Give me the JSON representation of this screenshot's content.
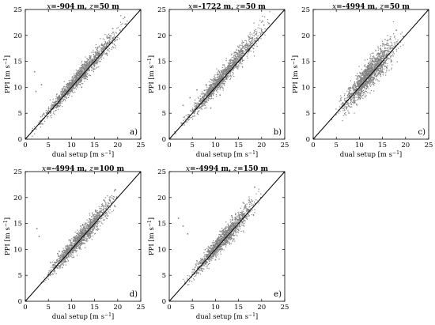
{
  "chart_data": [
    {
      "type": "scatter",
      "panel_id": "a",
      "title": "x=-904 m, z=50 m",
      "panel_label": "a)",
      "xlabel": "dual setup [m s⁻¹]",
      "ylabel": "PPI [m s⁻¹]",
      "xlim": [
        0,
        25
      ],
      "ylim": [
        0,
        25
      ],
      "xticks": [
        0,
        5,
        10,
        15,
        20,
        25
      ],
      "yticks": [
        0,
        5,
        10,
        15,
        20,
        25
      ],
      "reference_line": "1:1",
      "point_color": "#808080",
      "series": [
        {
          "x": [
            1.5,
            3.2,
            4.8,
            6.1,
            7.5,
            9.0,
            10.4,
            11.8,
            13.2,
            14.6,
            16.0,
            17.5,
            19.0,
            20.5,
            21.8,
            2.3,
            3.5,
            2.0,
            4.0,
            6.5,
            9.0,
            11.5,
            14.0,
            16.5,
            19.0,
            21.5,
            12.2,
            13.4,
            14.8,
            16.2,
            17.6
          ],
          "y": [
            1.7,
            3.5,
            5.2,
            6.3,
            7.8,
            9.3,
            10.6,
            12.3,
            13.6,
            15.0,
            16.4,
            17.8,
            19.5,
            21.0,
            22.2,
            9.2,
            10.5,
            13.0,
            4.8,
            7.2,
            10.1,
            12.8,
            15.5,
            18.1,
            20.6,
            23.5,
            10.0,
            12.0,
            13.5,
            15.0,
            16.5
          ]
        }
      ]
    },
    {
      "type": "scatter",
      "panel_id": "b",
      "title": "x=-1722 m, z=50 m",
      "panel_label": "b)",
      "xlabel": "dual setup [m s⁻¹]",
      "ylabel": "PPI [m s⁻¹]",
      "xlim": [
        0,
        25
      ],
      "ylim": [
        0,
        25
      ],
      "xticks": [
        0,
        5,
        10,
        15,
        20,
        25
      ],
      "yticks": [
        0,
        5,
        10,
        15,
        20,
        25
      ],
      "reference_line": "1:1",
      "point_color": "#808080",
      "series": [
        {
          "x": [
            1.2,
            2.8,
            4.3,
            5.7,
            7.1,
            8.6,
            10.0,
            11.4,
            12.8,
            14.2,
            15.6,
            17.1,
            18.6,
            20.1,
            21.6,
            3.0,
            4.5,
            6.0,
            8.0,
            10.5,
            13.0,
            15.5,
            18.0,
            20.5,
            9.0,
            11.0
          ],
          "y": [
            1.4,
            3.0,
            4.6,
            5.9,
            7.5,
            8.9,
            10.5,
            11.8,
            13.3,
            14.5,
            16.1,
            17.4,
            19.0,
            20.6,
            22.3,
            6.5,
            8.0,
            9.5,
            10.5,
            12.5,
            14.5,
            17.0,
            19.5,
            22.0,
            6.0,
            8.5
          ]
        }
      ]
    },
    {
      "type": "scatter",
      "panel_id": "c",
      "title": "x=-4994 m, z=50 m",
      "panel_label": "c)",
      "xlabel": "dual setup [m s⁻¹]",
      "ylabel": "PPI [m s⁻¹]",
      "xlim": [
        0,
        25
      ],
      "ylim": [
        0,
        25
      ],
      "xticks": [
        0,
        5,
        10,
        15,
        20,
        25
      ],
      "yticks": [
        0,
        5,
        10,
        15,
        20,
        25
      ],
      "reference_line": "1:1",
      "point_color": "#808080",
      "series": [
        {
          "x": [
            4.0,
            5.5,
            7.0,
            8.2,
            9.4,
            10.5,
            11.6,
            12.7,
            13.8,
            14.9,
            16.0,
            17.1,
            18.2,
            19.5,
            6.0,
            8.0,
            10.0,
            12.0,
            14.0,
            16.0,
            18.0,
            9.0,
            11.0,
            13.0,
            15.0,
            17.0
          ],
          "y": [
            3.8,
            5.6,
            7.3,
            8.7,
            9.8,
            10.6,
            11.9,
            13.0,
            14.2,
            15.0,
            16.3,
            17.0,
            18.4,
            19.8,
            7.5,
            9.8,
            12.0,
            14.2,
            16.5,
            18.5,
            21.0,
            7.0,
            9.0,
            11.0,
            13.0,
            15.0
          ]
        }
      ]
    },
    {
      "type": "scatter",
      "panel_id": "d",
      "title": "x=-4994 m, z=100 m",
      "panel_label": "d)",
      "xlabel": "dual setup [m s⁻¹]",
      "ylabel": "PPI [m s⁻¹]",
      "xlim": [
        0,
        25
      ],
      "ylim": [
        0,
        25
      ],
      "xticks": [
        0,
        5,
        10,
        15,
        20,
        25
      ],
      "yticks": [
        0,
        5,
        10,
        15,
        20,
        25
      ],
      "reference_line": "1:1",
      "point_color": "#808080",
      "series": [
        {
          "x": [
            3.5,
            5.0,
            6.5,
            7.8,
            9.0,
            10.2,
            11.4,
            12.6,
            13.8,
            15.0,
            16.2,
            17.4,
            18.6,
            19.8,
            2.5,
            3.0,
            5.5,
            7.0,
            9.5,
            12.0,
            14.5,
            17.0,
            19.5,
            8.0,
            10.5
          ],
          "y": [
            3.6,
            5.1,
            6.8,
            8.0,
            9.3,
            10.4,
            11.7,
            12.9,
            14.0,
            15.3,
            16.4,
            17.8,
            18.9,
            20.1,
            14.0,
            12.5,
            7.5,
            9.2,
            11.8,
            14.5,
            17.0,
            19.5,
            21.5,
            6.5,
            8.5
          ]
        }
      ]
    },
    {
      "type": "scatter",
      "panel_id": "e",
      "title": "x=-4994 m, z=150 m",
      "panel_label": "e)",
      "xlabel": "dual setup [m s⁻¹]",
      "ylabel": "PPI [m s⁻¹]",
      "xlim": [
        0,
        25
      ],
      "ylim": [
        0,
        25
      ],
      "xticks": [
        0,
        5,
        10,
        15,
        20,
        25
      ],
      "yticks": [
        0,
        5,
        10,
        15,
        20,
        25
      ],
      "reference_line": "1:1",
      "point_color": "#808080",
      "series": [
        {
          "x": [
            3.5,
            5.0,
            6.5,
            7.8,
            9.0,
            10.2,
            11.4,
            12.6,
            13.8,
            15.0,
            16.2,
            17.4,
            18.6,
            19.8,
            2.0,
            3.0,
            4.0,
            6.0,
            8.5,
            11.0,
            13.5,
            16.0,
            18.5,
            10.0,
            14.0
          ],
          "y": [
            3.4,
            5.2,
            6.6,
            8.1,
            9.2,
            10.5,
            11.5,
            12.8,
            14.1,
            15.2,
            16.5,
            17.6,
            18.8,
            20.0,
            16.0,
            14.5,
            13.0,
            7.8,
            10.5,
            13.5,
            16.5,
            19.0,
            22.0,
            8.0,
            12.0
          ]
        }
      ]
    }
  ]
}
